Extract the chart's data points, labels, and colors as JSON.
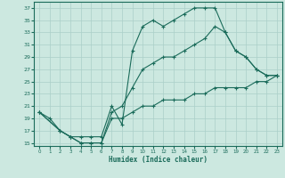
{
  "title": "",
  "xlabel": "Humidex (Indice chaleur)",
  "ylabel": "",
  "bg_color": "#cce8e0",
  "grid_color": "#aacfc8",
  "line_color": "#1a6b5a",
  "xlim": [
    -0.5,
    23.5
  ],
  "ylim": [
    14.5,
    38
  ],
  "xticks": [
    0,
    1,
    2,
    3,
    4,
    5,
    6,
    7,
    8,
    9,
    10,
    11,
    12,
    13,
    14,
    15,
    16,
    17,
    18,
    19,
    20,
    21,
    22,
    23
  ],
  "yticks": [
    15,
    17,
    19,
    21,
    23,
    25,
    27,
    29,
    31,
    33,
    35,
    37
  ],
  "series": [
    {
      "x": [
        0,
        1,
        2,
        3,
        4,
        5,
        6,
        7,
        8,
        9,
        10,
        11,
        12,
        13,
        14,
        15,
        16,
        17,
        18,
        19,
        20,
        21,
        22,
        23
      ],
      "y": [
        20,
        19,
        17,
        16,
        16,
        16,
        16,
        21,
        18,
        30,
        34,
        35,
        34,
        35,
        36,
        37,
        37,
        37,
        33,
        30,
        29,
        27,
        26,
        26
      ]
    },
    {
      "x": [
        0,
        2,
        3,
        4,
        5,
        6,
        7,
        8,
        9,
        10,
        11,
        12,
        13,
        14,
        15,
        16,
        17,
        18,
        19,
        20,
        21,
        22,
        23
      ],
      "y": [
        20,
        17,
        16,
        15,
        15,
        15,
        20,
        21,
        24,
        27,
        28,
        29,
        29,
        30,
        31,
        32,
        34,
        33,
        30,
        29,
        27,
        26,
        26
      ]
    },
    {
      "x": [
        0,
        2,
        3,
        4,
        5,
        6,
        7,
        8,
        9,
        10,
        11,
        12,
        13,
        14,
        15,
        16,
        17,
        18,
        19,
        20,
        21,
        22,
        23
      ],
      "y": [
        20,
        17,
        16,
        15,
        15,
        15,
        19,
        19,
        20,
        21,
        21,
        22,
        22,
        22,
        23,
        23,
        24,
        24,
        24,
        24,
        25,
        25,
        26
      ]
    }
  ]
}
